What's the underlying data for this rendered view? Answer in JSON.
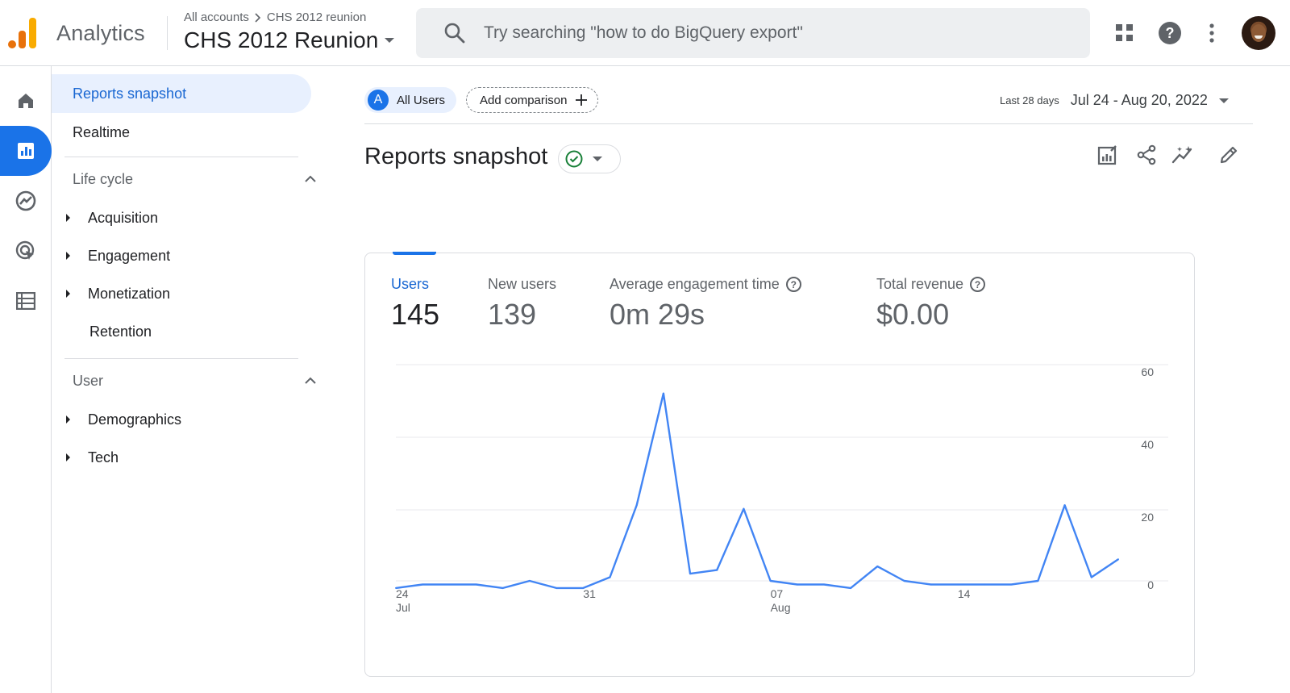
{
  "app": {
    "name": "Analytics"
  },
  "breadcrumb": {
    "account": "All accounts",
    "property": "CHS 2012 reunion"
  },
  "property_selector": {
    "label": "CHS 2012 Reunion"
  },
  "search": {
    "placeholder": "Try searching \"how to do BigQuery export\""
  },
  "top_icons": [
    "apps-grid-icon",
    "help-icon",
    "more-vert-icon",
    "avatar"
  ],
  "rail": [
    "home-icon",
    "reports-icon",
    "explore-icon",
    "advertising-icon",
    "configure-icon"
  ],
  "nav": {
    "selected": "Reports snapshot",
    "realtime": "Realtime",
    "lifecycle": {
      "title": "Life cycle",
      "items": [
        "Acquisition",
        "Engagement",
        "Monetization",
        "Retention"
      ]
    },
    "user": {
      "title": "User",
      "items": [
        "Demographics",
        "Tech"
      ]
    }
  },
  "filters": {
    "segment_letter": "A",
    "segment": "All Users",
    "add_comparison": "Add comparison"
  },
  "date_range": {
    "preset": "Last 28 days",
    "range": "Jul 24 - Aug 20, 2022"
  },
  "page": {
    "title": "Reports snapshot"
  },
  "metrics": [
    {
      "label": "Users",
      "value": "145"
    },
    {
      "label": "New users",
      "value": "139"
    },
    {
      "label": "Average engagement time",
      "value": "0m 29s"
    },
    {
      "label": "Total revenue",
      "value": "$0.00"
    }
  ],
  "colors": {
    "accent": "#1a73e8",
    "line": "#4285f4",
    "ok": "#188038"
  },
  "chart_data": {
    "type": "line",
    "x": [
      "2022-07-24",
      "2022-07-25",
      "2022-07-26",
      "2022-07-27",
      "2022-07-28",
      "2022-07-29",
      "2022-07-30",
      "2022-07-31",
      "2022-08-01",
      "2022-08-02",
      "2022-08-03",
      "2022-08-04",
      "2022-08-05",
      "2022-08-06",
      "2022-08-07",
      "2022-08-08",
      "2022-08-09",
      "2022-08-10",
      "2022-08-11",
      "2022-08-12",
      "2022-08-13",
      "2022-08-14",
      "2022-08-15",
      "2022-08-16",
      "2022-08-17",
      "2022-08-18",
      "2022-08-19",
      "2022-08-20"
    ],
    "series": [
      {
        "values": [
          -2,
          -1,
          -1,
          -1,
          -2,
          0,
          -2,
          -2,
          1,
          21,
          52,
          2,
          3,
          20,
          0,
          -1,
          -1,
          -2,
          4,
          0,
          -1,
          -1,
          -1,
          -1,
          0,
          21,
          1,
          6
        ]
      }
    ],
    "x_tick_labels": [
      {
        "top": "24",
        "bottom": "Jul"
      },
      {
        "top": "31",
        "bottom": ""
      },
      {
        "top": "07",
        "bottom": "Aug"
      },
      {
        "top": "14",
        "bottom": ""
      }
    ],
    "y_tick_labels": [
      "60",
      "40",
      "20",
      "0"
    ],
    "grid": true
  }
}
